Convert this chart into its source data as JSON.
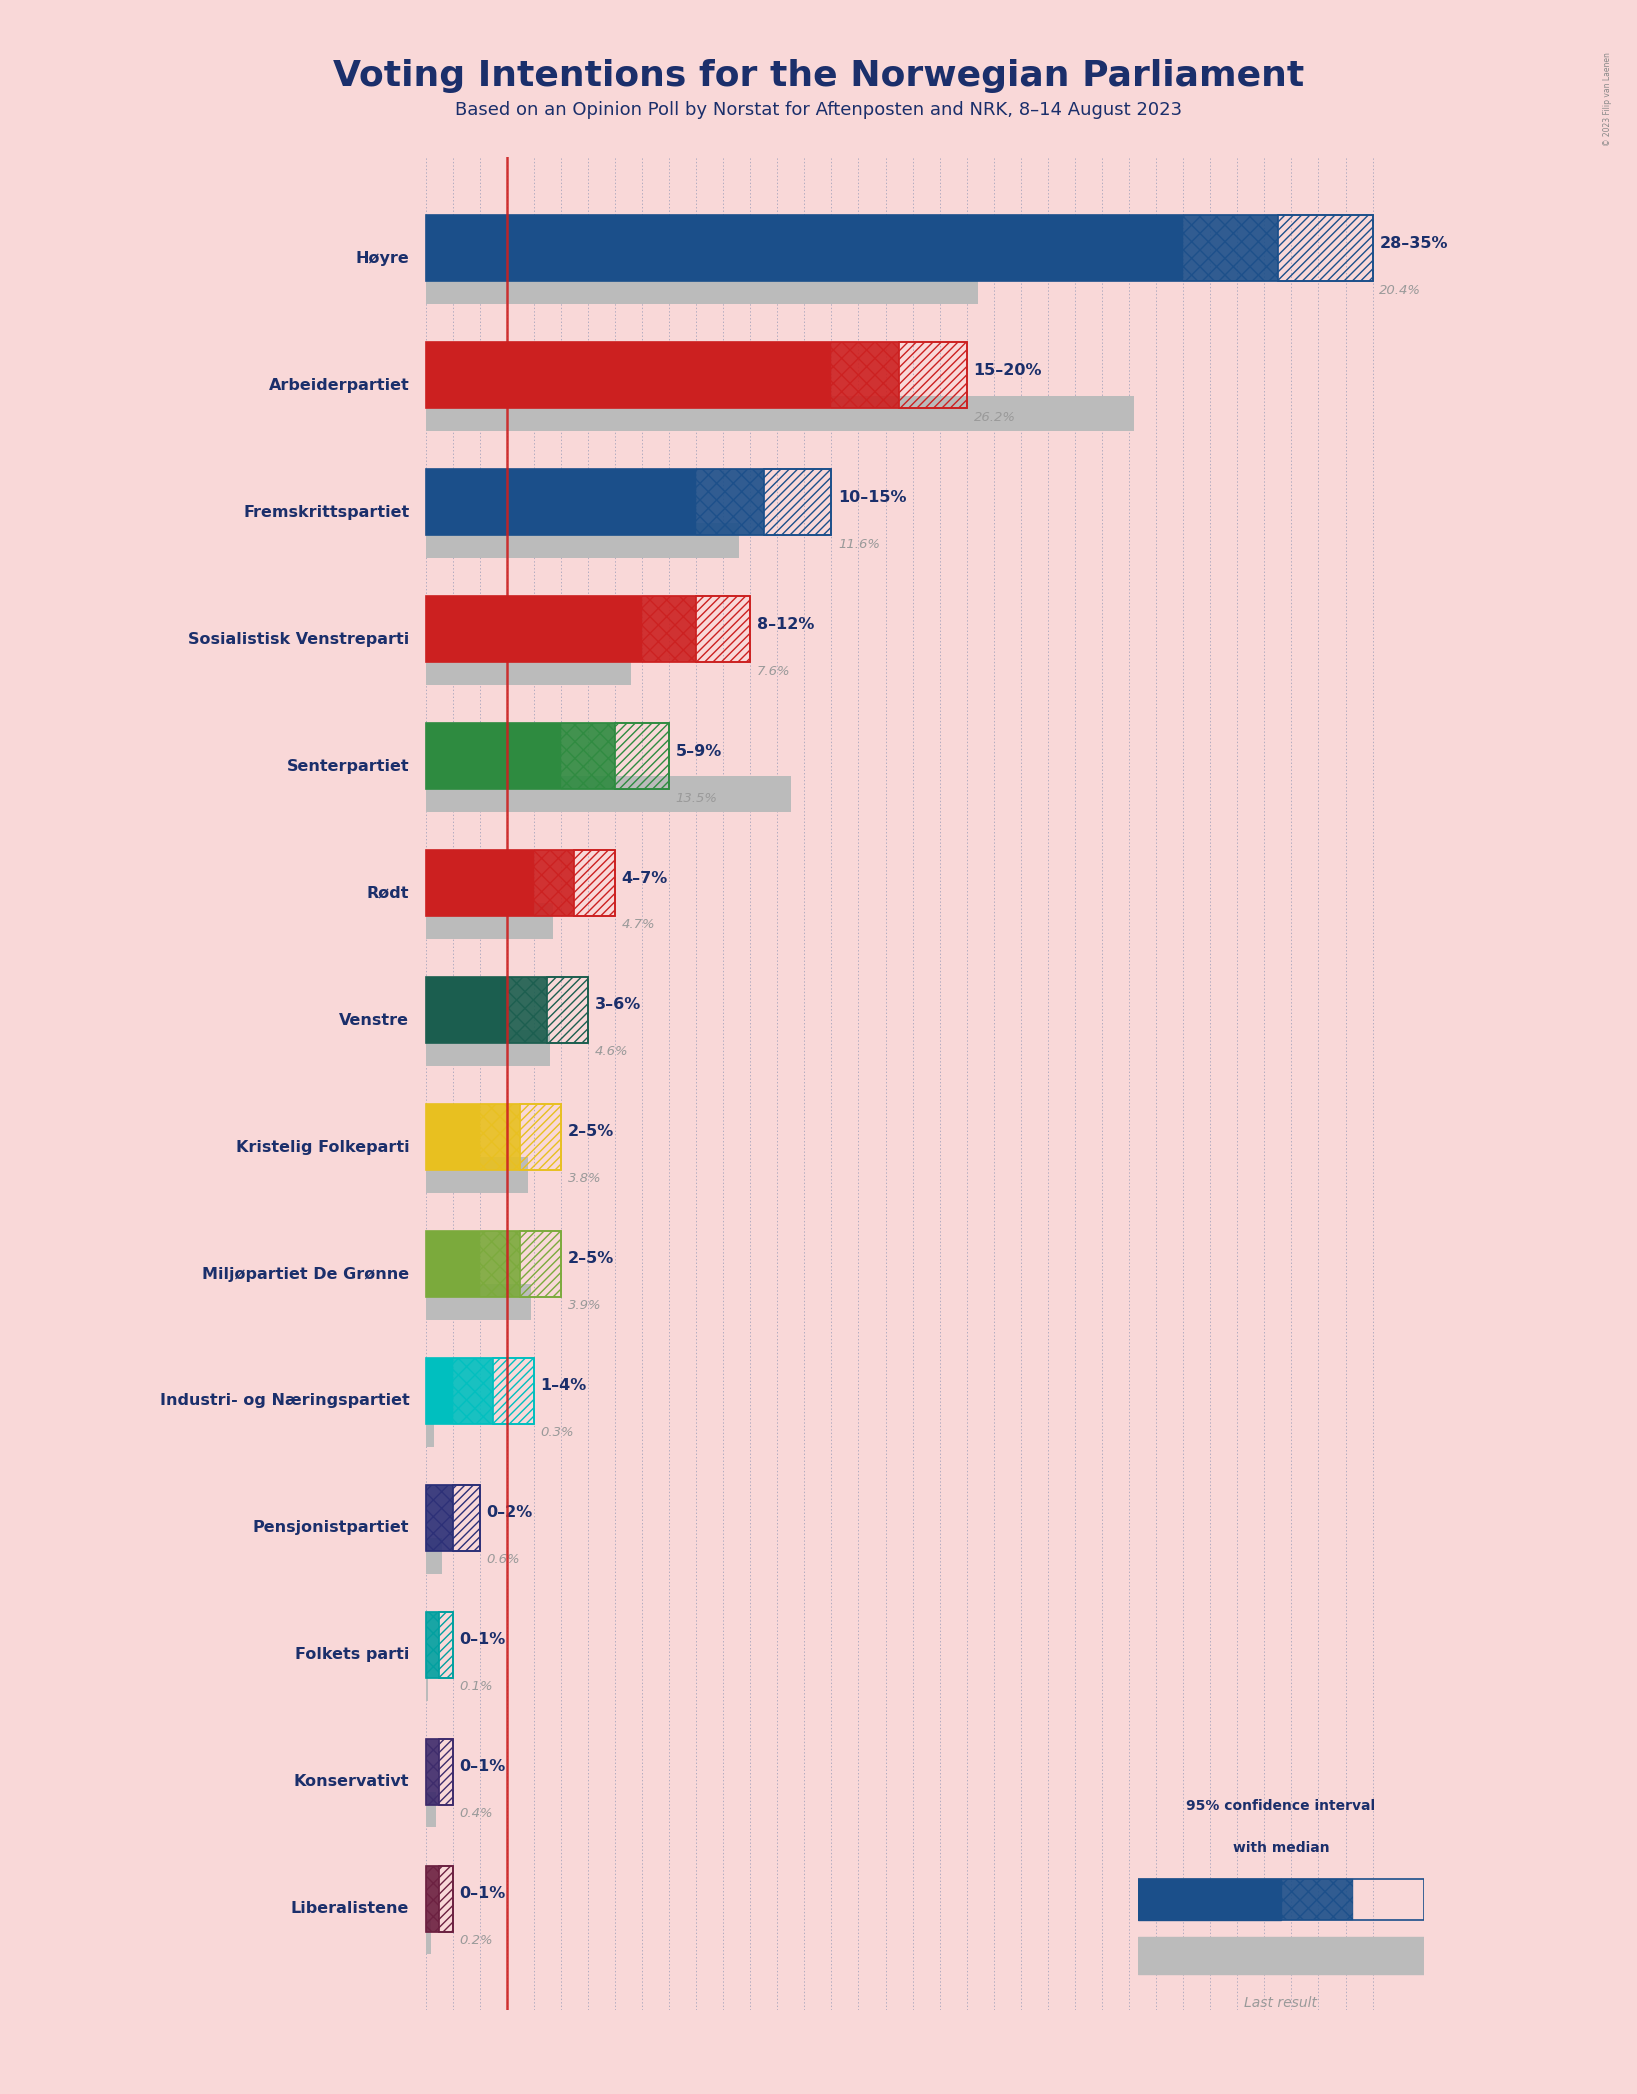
{
  "title": "Voting Intentions for the Norwegian Parliament",
  "subtitle": "Based on an Opinion Poll by Norstat for Aftenposten and NRK, 8–14 August 2023",
  "background_color": "#F9D8D8",
  "parties": [
    {
      "name": "Høyre",
      "color": "#1B4F8A",
      "ci_low": 28,
      "ci_high": 35,
      "median": 31.5,
      "last": 20.4,
      "label": "28–35%",
      "last_label": "20.4%"
    },
    {
      "name": "Arbeiderpartiet",
      "color": "#CC2020",
      "ci_low": 15,
      "ci_high": 20,
      "median": 17.5,
      "last": 26.2,
      "label": "15–20%",
      "last_label": "26.2%"
    },
    {
      "name": "Fremskrittspartiet",
      "color": "#1B4F8A",
      "ci_low": 10,
      "ci_high": 15,
      "median": 12.5,
      "last": 11.6,
      "label": "10–15%",
      "last_label": "11.6%"
    },
    {
      "name": "Sosialistisk Venstreparti",
      "color": "#CC2020",
      "ci_low": 8,
      "ci_high": 12,
      "median": 10.0,
      "last": 7.6,
      "label": "8–12%",
      "last_label": "7.6%"
    },
    {
      "name": "Senterpartiet",
      "color": "#2E8B40",
      "ci_low": 5,
      "ci_high": 9,
      "median": 7.0,
      "last": 13.5,
      "label": "5–9%",
      "last_label": "13.5%"
    },
    {
      "name": "Rødt",
      "color": "#CC2020",
      "ci_low": 4,
      "ci_high": 7,
      "median": 5.5,
      "last": 4.7,
      "label": "4–7%",
      "last_label": "4.7%"
    },
    {
      "name": "Venstre",
      "color": "#1B5E4F",
      "ci_low": 3,
      "ci_high": 6,
      "median": 4.5,
      "last": 4.6,
      "label": "3–6%",
      "last_label": "4.6%"
    },
    {
      "name": "Kristelig Folkeparti",
      "color": "#E8C020",
      "ci_low": 2,
      "ci_high": 5,
      "median": 3.5,
      "last": 3.8,
      "label": "2–5%",
      "last_label": "3.8%"
    },
    {
      "name": "Miljøpartiet De Grønne",
      "color": "#7BAA3C",
      "ci_low": 2,
      "ci_high": 5,
      "median": 3.5,
      "last": 3.9,
      "label": "2–5%",
      "last_label": "3.9%"
    },
    {
      "name": "Industri- og Næringspartiet",
      "color": "#00BFBF",
      "ci_low": 1,
      "ci_high": 4,
      "median": 2.5,
      "last": 0.3,
      "label": "1–4%",
      "last_label": "0.3%"
    },
    {
      "name": "Pensjonistpartiet",
      "color": "#2B2F77",
      "ci_low": 0,
      "ci_high": 2,
      "median": 1.0,
      "last": 0.6,
      "label": "0–2%",
      "last_label": "0.6%"
    },
    {
      "name": "Folkets parti",
      "color": "#00A0A0",
      "ci_low": 0,
      "ci_high": 1,
      "median": 0.5,
      "last": 0.1,
      "label": "0–1%",
      "last_label": "0.1%"
    },
    {
      "name": "Konservativt",
      "color": "#3D2B6B",
      "ci_low": 0,
      "ci_high": 1,
      "median": 0.5,
      "last": 0.4,
      "label": "0–1%",
      "last_label": "0.4%"
    },
    {
      "name": "Liberalistene",
      "color": "#6B2040",
      "ci_low": 0,
      "ci_high": 1,
      "median": 0.5,
      "last": 0.2,
      "label": "0–1%",
      "last_label": "0.2%"
    }
  ],
  "xmax": 36,
  "vertical_line_x": 3.0,
  "title_color": "#1B2F6B",
  "label_color": "#1B2F6B",
  "last_color": "#9A9A9A",
  "title_fontsize": 26,
  "subtitle_fontsize": 13,
  "bar_height": 0.52,
  "last_bar_height": 0.28
}
